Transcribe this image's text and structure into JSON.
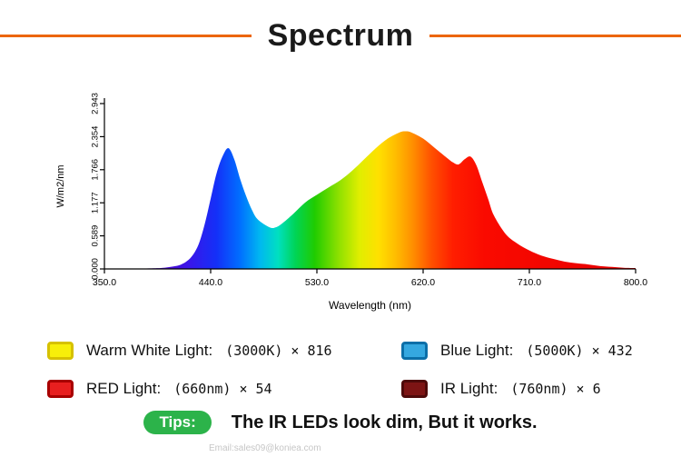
{
  "header": {
    "title": "Spectrum",
    "accent_color": "#EC6608"
  },
  "chart_data": {
    "type": "area",
    "title": "",
    "xlabel": "Wavelength (nm)",
    "ylabel": "W/m2/nm",
    "xlim": [
      350,
      800
    ],
    "ylim": [
      0,
      2.943
    ],
    "x_ticks": [
      "350.0",
      "440.0",
      "530.0",
      "620.0",
      "710.0",
      "800.0"
    ],
    "y_ticks": [
      "0.000",
      "0.589",
      "1.177",
      "1.766",
      "2.354",
      "2.943"
    ],
    "x": [
      350,
      370,
      390,
      400,
      410,
      415,
      420,
      425,
      430,
      435,
      440,
      445,
      450,
      455,
      460,
      465,
      470,
      475,
      480,
      490,
      495,
      500,
      510,
      520,
      530,
      540,
      550,
      560,
      570,
      580,
      590,
      600,
      605,
      610,
      620,
      630,
      640,
      645,
      650,
      655,
      660,
      665,
      670,
      675,
      680,
      690,
      700,
      710,
      720,
      730,
      740,
      750,
      760,
      770,
      780,
      790,
      800
    ],
    "y": [
      0,
      0.005,
      0.01,
      0.02,
      0.05,
      0.08,
      0.14,
      0.25,
      0.45,
      0.8,
      1.25,
      1.7,
      2.0,
      2.15,
      1.95,
      1.6,
      1.3,
      1.05,
      0.88,
      0.74,
      0.74,
      0.8,
      0.98,
      1.18,
      1.32,
      1.45,
      1.58,
      1.75,
      1.95,
      2.15,
      2.32,
      2.43,
      2.45,
      2.43,
      2.32,
      2.15,
      1.98,
      1.9,
      1.86,
      1.95,
      2.0,
      1.85,
      1.55,
      1.25,
      0.95,
      0.62,
      0.45,
      0.33,
      0.24,
      0.18,
      0.13,
      0.1,
      0.08,
      0.05,
      0.035,
      0.02,
      0.015
    ],
    "gradient_stops": [
      {
        "wl": 380,
        "color": "#5a00b4"
      },
      {
        "wl": 420,
        "color": "#3c14e8"
      },
      {
        "wl": 445,
        "color": "#1430f8"
      },
      {
        "wl": 465,
        "color": "#0070ff"
      },
      {
        "wl": 482,
        "color": "#00b8f0"
      },
      {
        "wl": 497,
        "color": "#00e0c0"
      },
      {
        "wl": 512,
        "color": "#00d455"
      },
      {
        "wl": 528,
        "color": "#20cc00"
      },
      {
        "wl": 548,
        "color": "#8ce000"
      },
      {
        "wl": 566,
        "color": "#e0ee00"
      },
      {
        "wl": 582,
        "color": "#ffe000"
      },
      {
        "wl": 597,
        "color": "#ffbc00"
      },
      {
        "wl": 612,
        "color": "#ff8c00"
      },
      {
        "wl": 627,
        "color": "#ff5000"
      },
      {
        "wl": 645,
        "color": "#ff1e00"
      },
      {
        "wl": 672,
        "color": "#fa0a00"
      },
      {
        "wl": 800,
        "color": "#e60000"
      }
    ],
    "grid": false,
    "legend_position": "below"
  },
  "legend": {
    "items": [
      {
        "label": "Warm White Light:",
        "detail": "(3000K) × 816",
        "fill": "#f7ef0a",
        "border": "#d6c100"
      },
      {
        "label": "Blue Light:",
        "detail": "(5000K) × 432",
        "fill": "#35a8e0",
        "border": "#0c6fa8"
      },
      {
        "label": "RED Light:",
        "detail": "(660nm) × 54",
        "fill": "#e81f1f",
        "border": "#a80000"
      },
      {
        "label": "IR Light:",
        "detail": "(760nm) × 6",
        "fill": "#7d1414",
        "border": "#4e0a0a"
      }
    ]
  },
  "tips": {
    "badge": "Tips:",
    "badge_color": "#2cb34a",
    "text": "The IR LEDs look dim, But it works."
  },
  "footer": {
    "email": "Email:sales09@koniea.com"
  }
}
